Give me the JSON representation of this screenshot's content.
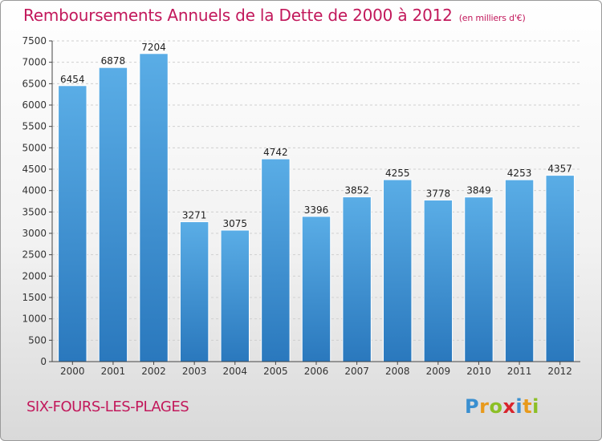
{
  "chart_data": {
    "type": "bar",
    "title": "Remboursements Annuels de la Dette de 2000 à 2012",
    "subtitle": "(en milliers d'€)",
    "categories": [
      "2000",
      "2001",
      "2002",
      "2003",
      "2004",
      "2005",
      "2006",
      "2007",
      "2008",
      "2009",
      "2010",
      "2011",
      "2012"
    ],
    "values": [
      6454,
      6878,
      7204,
      3271,
      3075,
      4742,
      3396,
      3852,
      4255,
      3778,
      3849,
      4253,
      4357
    ],
    "ylim": [
      0,
      7500
    ],
    "yticks": [
      0,
      500,
      1000,
      1500,
      2000,
      2500,
      3000,
      3500,
      4000,
      4500,
      5000,
      5500,
      6000,
      6500,
      7000,
      7500
    ],
    "xlabel": "",
    "ylabel": "",
    "grid": true,
    "bar_color_top": "#5aade6",
    "bar_color_bottom": "#2a78bd"
  },
  "footer": {
    "city": "SIX-FOURS-LES-PLAGES",
    "logo_letters": [
      "P",
      "r",
      "o",
      "x",
      "i",
      "t",
      "i"
    ],
    "logo_colors": [
      "#3a8fd0",
      "#e89a1c",
      "#8cbf26",
      "#d8242c",
      "#3a8fd0",
      "#e89a1c",
      "#8cbf26"
    ]
  },
  "colors": {
    "title": "#c2185b",
    "axis": "#444444",
    "grid": "#d0d0d0"
  }
}
